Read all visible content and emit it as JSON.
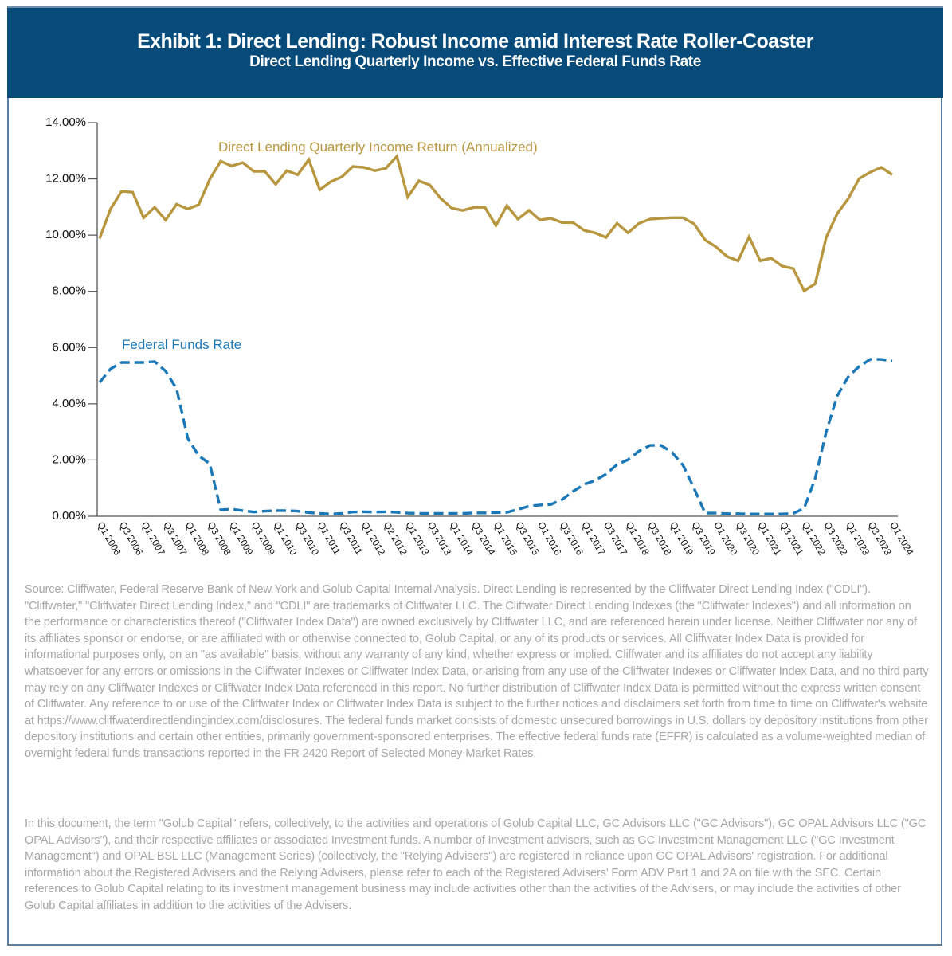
{
  "header": {
    "title": "Exhibit 1: Direct Lending: Robust Income amid Interest Rate Roller-Coaster",
    "subtitle": "Direct Lending Quarterly Income vs. Effective Federal Funds Rate"
  },
  "colors": {
    "header_bg": "#074b7b",
    "direct_lending": "#b8963e",
    "fed_funds": "#1a78b8",
    "footnote_text": "#a7a7a7"
  },
  "chart_data": {
    "type": "line",
    "title": "Direct Lending Quarterly Income vs. Effective Federal Funds Rate",
    "xlabel": "",
    "ylabel": "",
    "ylim": [
      0,
      14
    ],
    "y_ticks": [
      "0.00%",
      "2.00%",
      "4.00%",
      "6.00%",
      "8.00%",
      "10.00%",
      "12.00%",
      "14.00%"
    ],
    "y_tick_values": [
      0,
      2,
      4,
      6,
      8,
      10,
      12,
      14
    ],
    "grid": false,
    "legend": "inline labels",
    "x_tick_labels": [
      "Q1 2006",
      "Q3 2006",
      "Q1 2007",
      "Q3 2007",
      "Q1 2008",
      "Q3 2008",
      "Q1 2009",
      "Q3 2009",
      "Q1 2010",
      "Q3 2010",
      "Q1 2011",
      "Q3 2011",
      "Q1 2012",
      "Q2 2012",
      "Q1 2013",
      "Q3 2013",
      "Q1 2014",
      "Q3 2014",
      "Q1 2015",
      "Q3 2015",
      "Q1 2016",
      "Q3 2016",
      "Q1 2017",
      "Q3 2017",
      "Q1 2018",
      "Q3 2018",
      "Q1 2019",
      "Q3 2019",
      "Q1 2020",
      "Q3 2020",
      "Q1 2021",
      "Q3 2021",
      "Q1 2022",
      "Q3 2022",
      "Q1 2023",
      "Q3 2023",
      "Q1 2024"
    ],
    "x_count": 73,
    "series": [
      {
        "name": "Direct Lending Quarterly Income Return (Annualized)",
        "style": "solid",
        "values": [
          9.88,
          10.93,
          11.56,
          11.53,
          10.62,
          10.99,
          10.54,
          11.1,
          10.93,
          11.08,
          11.98,
          12.63,
          12.46,
          12.58,
          12.27,
          12.27,
          11.81,
          12.29,
          12.15,
          12.69,
          11.61,
          11.9,
          12.07,
          12.44,
          12.41,
          12.29,
          12.38,
          12.8,
          11.36,
          11.93,
          11.78,
          11.3,
          10.96,
          10.88,
          10.99,
          10.99,
          10.34,
          11.05,
          10.57,
          10.88,
          10.54,
          10.6,
          10.45,
          10.45,
          10.17,
          10.08,
          9.92,
          10.42,
          10.08,
          10.42,
          10.57,
          10.6,
          10.62,
          10.62,
          10.4,
          9.83,
          9.58,
          9.24,
          9.09,
          9.94,
          9.09,
          9.18,
          8.9,
          8.81,
          8.02,
          8.27,
          9.92,
          10.76,
          11.3,
          12.01,
          12.24,
          12.41,
          12.15
        ]
      },
      {
        "name": "Federal Funds Rate",
        "style": "dashed",
        "values": [
          4.76,
          5.24,
          5.47,
          5.47,
          5.47,
          5.5,
          5.16,
          4.53,
          2.78,
          2.15,
          1.87,
          0.23,
          0.25,
          0.2,
          0.15,
          0.18,
          0.2,
          0.2,
          0.18,
          0.13,
          0.1,
          0.08,
          0.1,
          0.15,
          0.16,
          0.15,
          0.16,
          0.14,
          0.11,
          0.1,
          0.1,
          0.1,
          0.1,
          0.1,
          0.12,
          0.12,
          0.13,
          0.14,
          0.24,
          0.36,
          0.4,
          0.42,
          0.59,
          0.88,
          1.13,
          1.27,
          1.5,
          1.84,
          2.01,
          2.32,
          2.52,
          2.52,
          2.27,
          1.81,
          0.99,
          0.11,
          0.11,
          0.09,
          0.09,
          0.08,
          0.08,
          0.08,
          0.08,
          0.1,
          0.28,
          1.35,
          3.0,
          4.28,
          4.96,
          5.33,
          5.58,
          5.58,
          5.52
        ]
      }
    ],
    "annotations": [
      "Direct Lending Quarterly Income Return (Annualized)",
      "Federal Funds Rate"
    ]
  },
  "footnotes": {
    "source": "Source: Cliffwater, Federal Reserve Bank of New York and Golub Capital Internal Analysis. Direct Lending is represented by the Cliffwater Direct Lending Index (\"CDLI\"). \"Cliffwater,\" \"Cliffwater Direct Lending Index,\" and \"CDLI\" are trademarks of Cliffwater LLC. The Cliffwater Direct Lending Indexes (the \"Cliffwater Indexes\") and all information on the performance or characteristics thereof (\"Cliffwater Index Data\") are owned exclusively by Cliffwater LLC, and are referenced herein under license. Neither Cliffwater nor any of its affiliates sponsor or endorse, or are affiliated with or otherwise connected to, Golub Capital, or any of its products or services. All Cliffwater Index Data is provided for informational purposes only, on an \"as available\" basis, without any warranty of any kind, whether express or implied. Cliffwater and its affiliates do not accept any liability whatsoever for any errors or omissions in the Cliffwater Indexes or Cliffwater Index Data, or arising from any use of the Cliffwater Indexes or Cliffwater Index Data, and no third party may rely on any Cliffwater Indexes or Cliffwater Index Data referenced in this report. No further distribution of Cliffwater Index Data is permitted without the express written consent of Cliffwater. Any reference to or use of the Cliffwater Index or Cliffwater Index Data is subject to the further notices and disclaimers set forth from time to time on Cliffwater's website at https://www.cliffwaterdirectlendingindex.com/disclosures. The federal funds market consists of domestic unsecured borrowings in U.S. dollars by depository institutions from other depository institutions and certain other entities, primarily government-sponsored enterprises. The effective federal funds rate (EFFR) is calculated as a volume-weighted median of overnight federal funds transactions reported in the FR 2420 Report of Selected Money Market Rates.",
    "disclosure": "In this document, the term \"Golub Capital\" refers, collectively, to the activities and operations of Golub Capital LLC, GC Advisors LLC (\"GC Advisors\"), GC OPAL Advisors LLC (\"GC OPAL Advisors\"), and their respective affiliates or associated Investment funds. A number of Investment advisers, such as GC Investment Management LLC (\"GC Investment Management\") and OPAL BSL LLC (Management Series) (collectively, the \"Relying Advisers\") are registered in reliance upon GC OPAL Advisors' registration. For additional information about the Registered Advisers and the Relying Advisers, please refer to each of the Registered Advisers' Form ADV Part 1 and 2A on file with the SEC. Certain references to Golub Capital relating to its investment management business may include activities other than the activities of the Advisers, or may include the activities of other Golub Capital affiliates in addition to the activities of the Advisers."
  }
}
